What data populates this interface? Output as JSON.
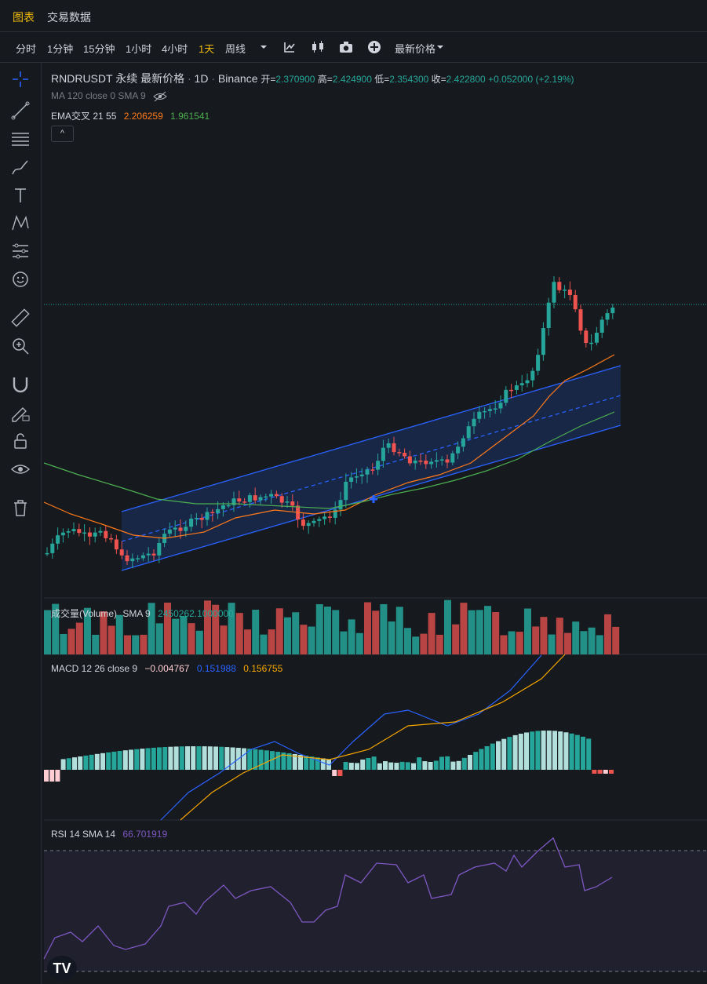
{
  "tabs": {
    "chart": "图表",
    "trade_data": "交易数据"
  },
  "timeframes": [
    "分时",
    "1分钟",
    "15分钟",
    "1小时",
    "4小时",
    "1天",
    "周线"
  ],
  "active_timeframe": "1天",
  "toolbar": {
    "price_type": "最新价格"
  },
  "symbol": {
    "name": "RNDRUSDT 永续 最新价格",
    "sep1": "·",
    "interval": "1D",
    "sep2": "·",
    "exchange": "Binance",
    "open_label": "开=",
    "open": "2.370900",
    "high_label": "高=",
    "high": "2.424900",
    "low_label": "低=",
    "low": "2.354300",
    "close_label": "收=",
    "close": "2.422800",
    "change": "+0.052000 (+2.19%)"
  },
  "ma_legend": "MA 120 close 0 SMA 9",
  "ema_legend": {
    "label": "EMA交叉 21 55",
    "v1": "2.206259",
    "v2": "1.961541"
  },
  "volume_legend": {
    "label": "成交量(Volume)",
    "sma": "SMA 9",
    "value": "2450262.1000000"
  },
  "macd_legend": {
    "label": "MACD 12 26 close 9",
    "hist": "−0.004767",
    "macd": "0.151988",
    "signal": "0.156755"
  },
  "rsi_legend": {
    "label": "RSI 14 SMA 14",
    "value": "66.701919"
  },
  "colors": {
    "up": "#26a69a",
    "down": "#ef5350",
    "accent": "#f0b90b",
    "ema_fast": "#ff7a1a",
    "ema_slow": "#4caf50",
    "macd": "#2962ff",
    "signal": "#f7a600",
    "rsi": "#7e57c2"
  },
  "icons": [
    "crosshair-icon",
    "trendline-icon",
    "fib-icon",
    "brush-icon",
    "text-icon",
    "pattern-icon",
    "prediction-icon",
    "emoji-icon",
    "ruler-icon",
    "zoom-icon",
    "magnet-icon",
    "lock-draw-icon",
    "unlock-icon",
    "eye-icon",
    "trash-icon"
  ],
  "collapse_label": "^",
  "logo": "TV"
}
